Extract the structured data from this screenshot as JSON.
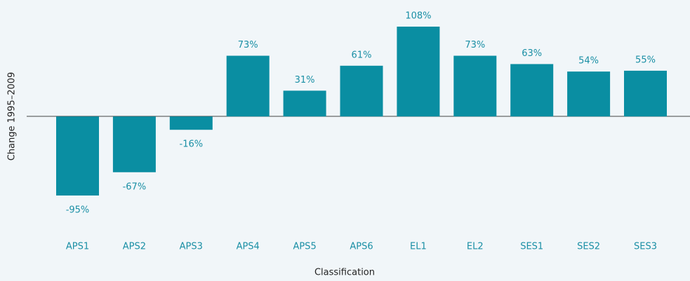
{
  "chart_data": {
    "type": "bar",
    "xlabel": "Classification",
    "ylabel": "Change 1995–2009",
    "categories": [
      "APS1",
      "APS2",
      "APS3",
      "APS4",
      "APS5",
      "APS6",
      "EL1",
      "EL2",
      "SES1",
      "SES2",
      "SES3"
    ],
    "values": [
      -95,
      -67,
      -16,
      73,
      31,
      61,
      108,
      73,
      63,
      54,
      55
    ],
    "value_labels": [
      "-95%",
      "-67%",
      "-16%",
      "73%",
      "31%",
      "61%",
      "108%",
      "73%",
      "63%",
      "54%",
      "55%"
    ],
    "color": "#0a8ea2"
  }
}
